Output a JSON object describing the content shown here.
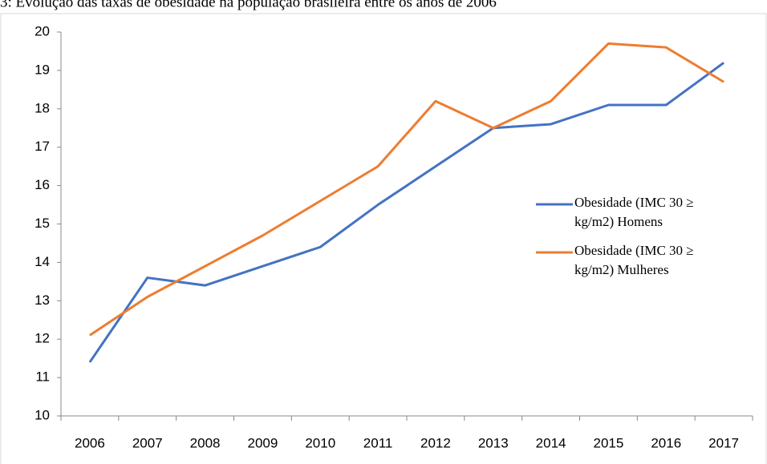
{
  "chart_data": {
    "type": "line",
    "title": "3: Evolução das taxas de obesidade na população brasileira entre os anos de 2006",
    "categories": [
      "2006",
      "2007",
      "2008",
      "2009",
      "2010",
      "2011",
      "2012",
      "2013",
      "2014",
      "2015",
      "2016",
      "2017"
    ],
    "series": [
      {
        "name": "Obesidade (IMC 30 ≥ kg/m2) Homens",
        "color": "#4472c4",
        "values": [
          11.4,
          13.6,
          13.4,
          13.9,
          14.4,
          15.5,
          16.5,
          17.5,
          17.6,
          18.1,
          18.1,
          19.2
        ]
      },
      {
        "name": "Obesidade (IMC 30 ≥ kg/m2) Mulheres",
        "color": "#ed7d31",
        "values": [
          12.1,
          13.1,
          13.9,
          14.7,
          15.6,
          16.5,
          18.2,
          17.5,
          18.2,
          19.7,
          19.6,
          18.7
        ]
      }
    ],
    "ylim": [
      10,
      20
    ],
    "yticks": [
      10,
      11,
      12,
      13,
      14,
      15,
      16,
      17,
      18,
      19,
      20
    ],
    "legend": "right"
  }
}
